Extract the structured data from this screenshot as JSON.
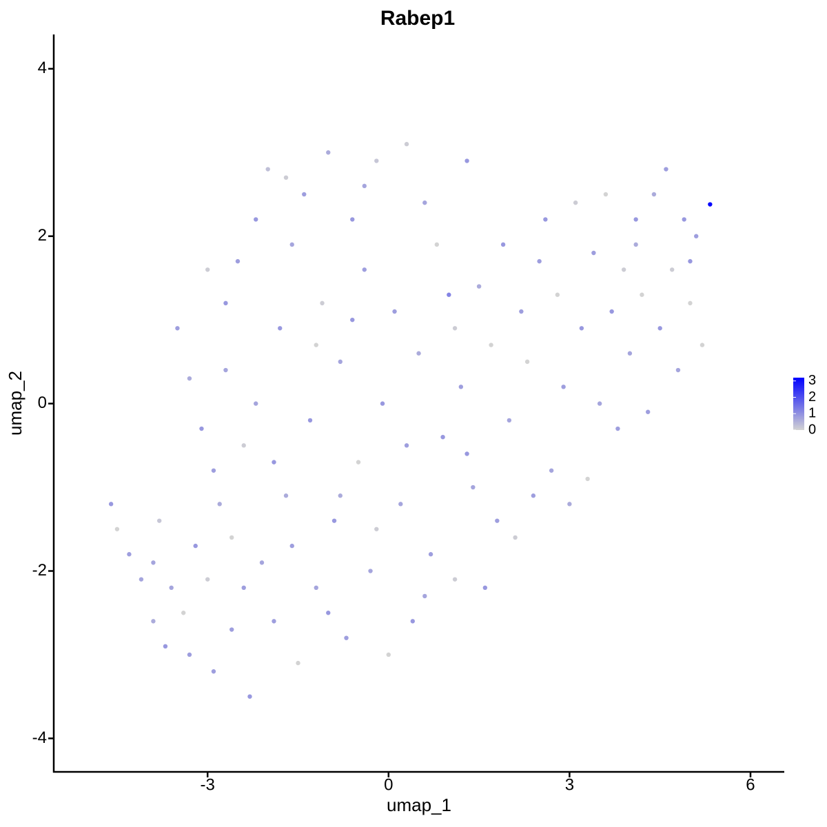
{
  "chart_data": {
    "type": "scatter",
    "title": "Rabep1",
    "x_label": "umap_1",
    "y_label": "umap_2",
    "xlim": [
      -5.55,
      6.56
    ],
    "ylim": [
      -4.4,
      4.41
    ],
    "xticks": [
      -3,
      0,
      3,
      6
    ],
    "yticks": [
      -4,
      -2,
      0,
      2,
      4
    ],
    "x": [
      -4.6,
      -4.5,
      -4.3,
      -4.1,
      -3.9,
      -3.8,
      -3.7,
      -3.6,
      -3.4,
      -3.3,
      -3.2,
      -3.1,
      -3.0,
      -2.9,
      -2.8,
      -2.7,
      -2.6,
      -2.5,
      -2.4,
      -2.3,
      -2.2,
      -2.1,
      -2.0,
      -1.9,
      -1.8,
      -1.7,
      -1.6,
      -1.5,
      -1.4,
      -1.3,
      -1.2,
      -1.1,
      -1.0,
      -0.9,
      -0.8,
      -0.7,
      -0.6,
      -0.5,
      -0.4,
      -0.3,
      -0.2,
      -0.1,
      0.0,
      0.1,
      0.2,
      0.3,
      0.4,
      0.5,
      0.6,
      0.7,
      0.8,
      0.9,
      1.0,
      1.1,
      1.2,
      1.3,
      1.4,
      1.5,
      1.6,
      1.7,
      1.8,
      1.9,
      2.0,
      2.1,
      2.2,
      2.3,
      2.4,
      2.6,
      2.7,
      2.8,
      2.9,
      3.0,
      3.1,
      3.2,
      3.3,
      3.4,
      3.5,
      3.6,
      3.7,
      3.8,
      3.9,
      4.0,
      4.1,
      4.2,
      4.3,
      4.4,
      4.5,
      4.6,
      4.7,
      4.8,
      4.9,
      5.0,
      5.1,
      5.2,
      5.33,
      -3.5,
      -3.0,
      -2.9,
      -2.6,
      -2.2,
      -1.9,
      -1.6,
      -1.2,
      -0.8,
      -0.6,
      -0.2,
      0.3,
      0.6,
      1.1,
      1.3,
      -3.9,
      -2.4,
      -1.0,
      -0.4,
      -1.7,
      -2.7,
      -3.3,
      2.5,
      4.1,
      5.0
    ],
    "y": [
      -1.2,
      -1.5,
      -1.8,
      -2.1,
      -2.6,
      -1.4,
      -2.9,
      -2.2,
      -2.5,
      -3.0,
      -1.7,
      -0.3,
      -2.1,
      -3.2,
      -1.2,
      0.4,
      -2.7,
      1.7,
      -0.5,
      -3.5,
      2.2,
      -1.9,
      2.8,
      -2.6,
      0.9,
      -1.1,
      1.9,
      -3.1,
      2.5,
      -0.2,
      -2.2,
      1.2,
      3.0,
      -1.4,
      0.5,
      -2.8,
      2.2,
      -0.7,
      1.6,
      -2.0,
      2.9,
      0.0,
      -3.0,
      1.1,
      -1.2,
      3.1,
      -2.6,
      0.6,
      2.4,
      -1.8,
      1.9,
      -0.4,
      1.3,
      -2.1,
      0.2,
      2.9,
      -1.0,
      1.4,
      -2.2,
      0.7,
      -1.4,
      1.9,
      -0.2,
      -1.6,
      1.1,
      0.5,
      -1.1,
      2.2,
      -0.8,
      1.3,
      0.2,
      -1.2,
      2.4,
      0.9,
      -0.9,
      1.8,
      0.0,
      2.5,
      1.1,
      -0.3,
      1.6,
      0.6,
      2.2,
      1.3,
      -0.1,
      2.5,
      0.9,
      2.8,
      1.6,
      0.4,
      2.2,
      1.2,
      2.0,
      0.7,
      2.38,
      0.9,
      1.6,
      -0.8,
      -1.6,
      0.0,
      -0.7,
      -1.7,
      0.7,
      -1.1,
      1.0,
      -1.5,
      -0.5,
      -2.3,
      0.9,
      -0.6,
      -1.9,
      -2.2,
      -2.5,
      2.6,
      2.7,
      1.2,
      0.3,
      1.7,
      1.9,
      1.7
    ],
    "expression": [
      0.9,
      0,
      0.8,
      0.7,
      0.6,
      0.2,
      0.9,
      0.7,
      0,
      0.8,
      0.9,
      0.9,
      0.1,
      0.8,
      0.6,
      0.7,
      0.8,
      0.8,
      0.1,
      0.9,
      0.9,
      0.7,
      0.3,
      0.8,
      0.9,
      0.6,
      0.7,
      0,
      0.8,
      0.9,
      0.7,
      0.1,
      0.6,
      0.9,
      0.7,
      0.8,
      0.9,
      0,
      0.8,
      0.7,
      0.2,
      0.9,
      0,
      0.8,
      0.7,
      0.1,
      0.9,
      0.6,
      0.7,
      0.8,
      0,
      0.9,
      1.2,
      0.1,
      0.8,
      0.9,
      0.7,
      0.6,
      0.9,
      0,
      0.8,
      0.9,
      0.7,
      0.1,
      0.8,
      0,
      0.8,
      0.9,
      0.7,
      0,
      0.8,
      0.6,
      0.1,
      0.9,
      0,
      0.8,
      0.7,
      0,
      0.9,
      0.8,
      0.1,
      0.7,
      0.9,
      0,
      0.8,
      0.6,
      0.9,
      0.8,
      0.1,
      0.7,
      0.9,
      0,
      0.8,
      0,
      3.1,
      0.8,
      0.1,
      0.8,
      0,
      0.7,
      0.9,
      0.8,
      0,
      0.6,
      0.9,
      0.1,
      0.8,
      0.7,
      0.1,
      0.9,
      0.7,
      0.8,
      0.9,
      0.7,
      0.1,
      0.9,
      0.6,
      0.8,
      0.6,
      0.9
    ],
    "colorbar": {
      "lim": [
        0,
        3.2
      ],
      "ticks": [
        0,
        1,
        2,
        3
      ],
      "low_color": "#d3d3d3",
      "high_color": "#0000ff"
    }
  }
}
